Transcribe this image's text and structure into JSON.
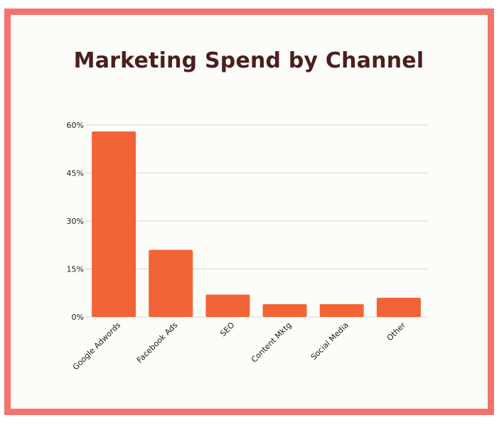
{
  "chart_data": {
    "type": "bar",
    "title": "Marketing Spend by Channel",
    "xlabel": "",
    "ylabel": "",
    "categories": [
      "Google Adwords",
      "Facebook Ads",
      "SEO",
      "Content Mktg",
      "Social Media",
      "Other"
    ],
    "values": [
      58,
      21,
      7,
      4,
      4,
      6
    ],
    "value_unit": "%",
    "ylim": [
      0,
      60
    ],
    "yticks": [
      0,
      15,
      30,
      45,
      60
    ],
    "ytick_labels": [
      "0%",
      "15%",
      "30%",
      "45%",
      "60%"
    ],
    "grid": true,
    "legend": "none"
  },
  "colors": {
    "bar": "#f26436",
    "frame": "#f5726c",
    "background": "#fcfcf8",
    "title": "#4a1f1e",
    "gridline": "#d4d4d0"
  }
}
